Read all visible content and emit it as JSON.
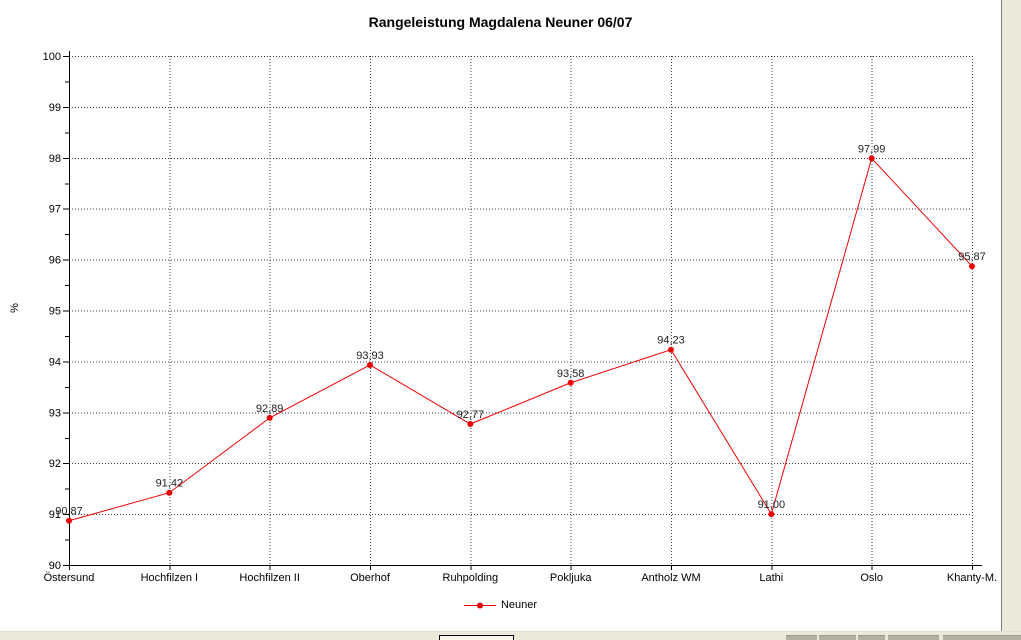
{
  "window": {
    "title": "Rangeleistung Magdalena Neuner 06/07"
  },
  "chart_data": {
    "type": "line",
    "title": "Rangeleistung Magdalena Neuner 06/07",
    "categories": [
      "Östersund",
      "Hochfilzen I",
      "Hochfilzen II",
      "Oberhof",
      "Ruhpolding",
      "Pokljuka",
      "Antholz WM",
      "Lathi",
      "Oslo",
      "Khanty-M."
    ],
    "series": [
      {
        "name": "Neuner",
        "values": [
          90.87,
          91.42,
          92.89,
          93.93,
          92.77,
          93.58,
          94.23,
          91.0,
          97.99,
          95.87
        ],
        "color": "#ee0000"
      }
    ],
    "point_labels": [
      "90,87",
      "91,42",
      "92,89",
      "93,93",
      "92,77",
      "93,58",
      "94,23",
      "91,00",
      "97,99",
      "95,87"
    ],
    "xlabel": "",
    "ylabel": "%",
    "ylim": [
      90,
      100
    ],
    "ytick_labels": [
      "90",
      "91",
      "92",
      "93",
      "94",
      "95",
      "96",
      "97",
      "98",
      "99",
      "100"
    ],
    "ytick_step": 1,
    "minor_tick_step": 0.5,
    "grid": true,
    "legend_position": "bottom"
  },
  "legend": {
    "label": "Neuner"
  },
  "colors": {
    "series": "#ee0000",
    "grid_dots": "#3c3c3c",
    "axis": "#000000",
    "tick_text": "#000000",
    "point_label_text": "#1f1f1f",
    "window_bg": "#ffffff",
    "desktop_bg": "#ece9d8",
    "window_border": "#7e7e78",
    "taskbar_segment": "#b3b0a2"
  }
}
